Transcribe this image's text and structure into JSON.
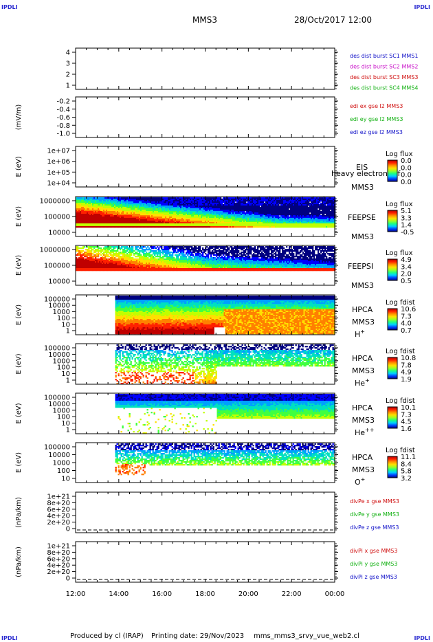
{
  "corners": {
    "tl": "IPDLI",
    "tr": "IPDLI",
    "bl": "IPDLI",
    "br": "IPDLI"
  },
  "header": {
    "spacecraft": "MMS3",
    "date": "28/Oct/2017 12:00"
  },
  "footer": {
    "produced_by": "Produced by cl (IRAP)",
    "printing": "Printing date: 29/Nov/2023",
    "file": "mms_mms3_srvy_vue_web2.cl"
  },
  "time_ticks": [
    "12:00",
    "14:00",
    "16:00",
    "18:00",
    "20:00",
    "22:00",
    "00:00"
  ],
  "panels": [
    {
      "id": "dist",
      "ylabel": "",
      "yticks": [
        "4",
        "3",
        "2",
        "1"
      ],
      "legend": [
        {
          "text": "des dist burst SC1 MMS1",
          "color": "#1010c8"
        },
        {
          "text": "des dist burst SC2 MMS2",
          "color": "#c810c8"
        },
        {
          "text": "des dist burst SC3 MMS3",
          "color": "#d01010"
        },
        {
          "text": "des dist burst SC4 MMS4",
          "color": "#10b010"
        }
      ]
    },
    {
      "id": "edi",
      "ylabel": "(mV/m)",
      "yticks": [
        "-0.2",
        "-0.4",
        "-0.6",
        "-0.8",
        "-1.0"
      ],
      "legend": [
        {
          "text": "edi ex gse l2 MMS3",
          "color": "#d01010"
        },
        {
          "text": "edi ey gse l2 MMS3",
          "color": "#10b010"
        },
        {
          "text": "edi ez gse l2 MMS3",
          "color": "#1010c8"
        }
      ]
    },
    {
      "id": "eis",
      "ylabel": "E (eV)",
      "yticks": [
        "1e+07",
        "1e+06",
        "1e+05",
        "1e+04"
      ],
      "inst": [
        "EIS",
        "MMS3"
      ],
      "overlay": "heavy electron tof",
      "cb": {
        "title": "Log flux",
        "values": [
          "0.0",
          "0.0",
          "0.0",
          "0.0"
        ]
      }
    },
    {
      "id": "feepse",
      "ylabel": "E (eV)",
      "yticks": [
        "1000000",
        "100000",
        "10000"
      ],
      "inst": [
        "FEEPSE",
        "MMS3"
      ],
      "cb": {
        "title": "Log flux",
        "values": [
          "5.1",
          "3.3",
          "1.4",
          "-0.5"
        ]
      }
    },
    {
      "id": "feepsi",
      "ylabel": "E (eV)",
      "yticks": [
        "1000000",
        "100000",
        "10000"
      ],
      "inst": [
        "FEEPSI",
        "MMS3"
      ],
      "cb": {
        "title": "Log flux",
        "values": [
          "4.9",
          "3.4",
          "2.0",
          "0.5"
        ]
      }
    },
    {
      "id": "hpca_h",
      "ylabel": "E (eV)",
      "yticks": [
        "100000",
        "10000",
        "1000",
        "100",
        "10",
        "1"
      ],
      "inst": [
        "HPCA",
        "MMS3"
      ],
      "species": "H",
      "species_sup": "+",
      "cb": {
        "title": "Log fdist",
        "values": [
          "10.6",
          "7.3",
          "4.0",
          "0.7"
        ]
      }
    },
    {
      "id": "hpca_he",
      "ylabel": "E (eV)",
      "yticks": [
        "100000",
        "10000",
        "1000",
        "100",
        "10",
        "1"
      ],
      "inst": [
        "HPCA",
        "MMS3"
      ],
      "species": "He",
      "species_sup": "+",
      "cb": {
        "title": "Log fdist",
        "values": [
          "10.8",
          "7.8",
          "4.9",
          "1.9"
        ]
      }
    },
    {
      "id": "hpca_hepp",
      "ylabel": "E (eV)",
      "yticks": [
        "100000",
        "10000",
        "1000",
        "100",
        "10",
        "1"
      ],
      "inst": [
        "HPCA",
        "MMS3"
      ],
      "species": "He",
      "species_sup": "++",
      "cb": {
        "title": "Log fdist",
        "values": [
          "10.1",
          "7.3",
          "4.5",
          "1.6"
        ]
      }
    },
    {
      "id": "hpca_o",
      "ylabel": "E (eV)",
      "yticks": [
        "100000",
        "10000",
        "1000",
        "100",
        "10"
      ],
      "inst": [
        "HPCA",
        "MMS3"
      ],
      "species": "O",
      "species_sup": "+",
      "cb": {
        "title": "Log fdist",
        "values": [
          "11.1",
          "8.4",
          "5.8",
          "3.2"
        ]
      }
    },
    {
      "id": "divpe",
      "ylabel": "(nPa/km)",
      "yticks": [
        "1e+21",
        "8e+20",
        "6e+20",
        "4e+20",
        "2e+20",
        "0"
      ],
      "legend": [
        {
          "text": "divPe x gse MMS3",
          "color": "#d01010"
        },
        {
          "text": "divPe y gse MMS3",
          "color": "#10b010"
        },
        {
          "text": "divPe z gse MMS3",
          "color": "#1010c8"
        }
      ]
    },
    {
      "id": "divpi",
      "ylabel": "(nPa/km)",
      "yticks": [
        "1e+21",
        "8e+20",
        "6e+20",
        "4e+20",
        "2e+20",
        "0"
      ],
      "legend": [
        {
          "text": "divPi x gse MMS3",
          "color": "#d01010"
        },
        {
          "text": "divPi y gse MMS3",
          "color": "#10b010"
        },
        {
          "text": "divPi z gse MMS3",
          "color": "#1010c8"
        }
      ]
    }
  ],
  "chart_data": {
    "type": "heatmap",
    "x_range": [
      "12:00",
      "00:00"
    ],
    "spectrogram_coverage": {
      "feepse": {
        "start": "12:00",
        "end": "00:00"
      },
      "feepsi": {
        "start": "12:00",
        "end": "00:00"
      },
      "hpca": {
        "start": "13:50",
        "end": "00:00"
      }
    },
    "colormap": [
      "#000080",
      "#0000ff",
      "#00a0ff",
      "#00e0c0",
      "#40ff40",
      "#c0ff00",
      "#ffe000",
      "#ff8000",
      "#ff2000",
      "#c00000"
    ]
  }
}
